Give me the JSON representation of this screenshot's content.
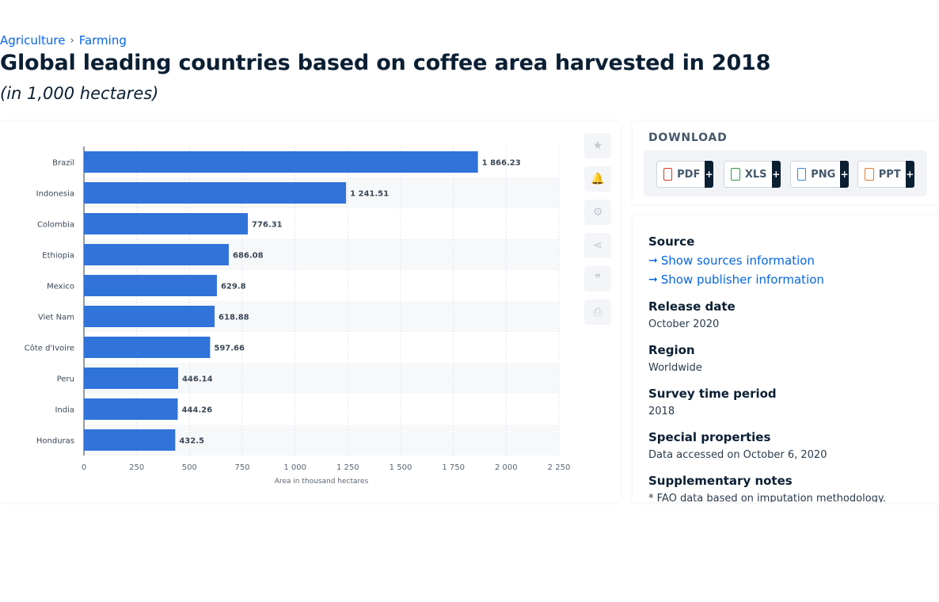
{
  "breadcrumb": {
    "items": [
      "Agriculture",
      "Farming"
    ],
    "separator": "›"
  },
  "title": "Global leading countries based on coffee area harvested in 2018",
  "subtitle": "(in 1,000 hectares)",
  "chart_data": {
    "type": "bar",
    "orientation": "horizontal",
    "categories": [
      "Brazil",
      "Indonesia",
      "Colombia",
      "Ethiopia",
      "Mexico",
      "Viet Nam",
      "Côte d'Ivoire",
      "Peru",
      "India",
      "Honduras"
    ],
    "values": [
      1866.23,
      1241.51,
      776.31,
      686.08,
      629.8,
      618.88,
      597.66,
      446.14,
      444.26,
      432.5
    ],
    "value_labels": [
      "1 866.23",
      "1 241.51",
      "776.31",
      "686.08",
      "629.8",
      "618.88",
      "597.66",
      "446.14",
      "444.26",
      "432.5"
    ],
    "xticks": [
      0,
      250,
      500,
      750,
      1000,
      1250,
      1500,
      1750,
      2000,
      2250
    ],
    "xtick_labels": [
      "0",
      "250",
      "500",
      "750",
      "1 000",
      "1 250",
      "1 500",
      "1 750",
      "2 000",
      "2 250"
    ],
    "xlim": [
      0,
      2250
    ],
    "xlabel": "Area in thousand hectares",
    "ylabel": "",
    "bar_color": "#3073d9",
    "grid": true
  },
  "tools": [
    {
      "name": "favorite-icon",
      "glyph": "★"
    },
    {
      "name": "notification-icon",
      "glyph": "🔔"
    },
    {
      "name": "settings-icon",
      "glyph": "⚙"
    },
    {
      "name": "share-icon",
      "glyph": "⋖"
    },
    {
      "name": "cite-icon",
      "glyph": "❞"
    },
    {
      "name": "print-icon",
      "glyph": "⎙"
    }
  ],
  "download": {
    "title": "DOWNLOAD",
    "buttons": [
      {
        "label": "PDF",
        "plus": "+",
        "color": "#d93a2b"
      },
      {
        "label": "XLS",
        "plus": "+",
        "color": "#2e9a4a"
      },
      {
        "label": "PNG",
        "plus": "+",
        "color": "#3e86c9"
      },
      {
        "label": "PPT",
        "plus": "+",
        "color": "#e37b2a"
      }
    ]
  },
  "info": {
    "source_heading": "Source",
    "show_sources": "Show sources information",
    "show_publisher": "Show publisher information",
    "release_date_heading": "Release date",
    "release_date": "October 2020",
    "region_heading": "Region",
    "region": "Worldwide",
    "survey_heading": "Survey time period",
    "survey": "2018",
    "special_heading": "Special properties",
    "special": "Data accessed on October 6, 2020",
    "supp_heading": "Supplementary notes",
    "supp": "* FAO data based on imputation methodology."
  }
}
